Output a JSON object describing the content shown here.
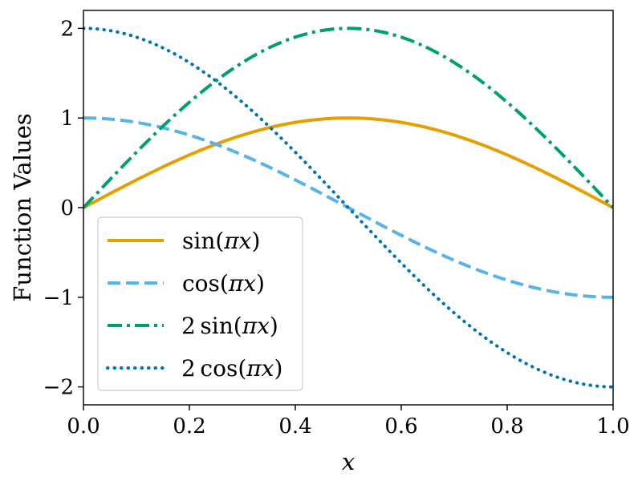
{
  "chart_data": {
    "type": "line",
    "title": "",
    "xlabel": "x",
    "ylabel": "Function Values",
    "xlim": [
      0.0,
      1.0
    ],
    "ylim": [
      -2.2,
      2.2
    ],
    "xticks": [
      0.0,
      0.2,
      0.4,
      0.6,
      0.8,
      1.0
    ],
    "xtick_labels": [
      "0.0",
      "0.2",
      "0.4",
      "0.6",
      "0.8",
      "1.0"
    ],
    "yticks": [
      -2,
      -1,
      0,
      1,
      2
    ],
    "ytick_labels": [
      "−2",
      "−1",
      "0",
      "1",
      "2"
    ],
    "grid": false,
    "legend_position": "lower-left",
    "x": [
      0.0,
      0.05,
      0.1,
      0.15,
      0.2,
      0.25,
      0.3,
      0.35,
      0.4,
      0.45,
      0.5,
      0.55,
      0.6,
      0.65,
      0.7,
      0.75,
      0.8,
      0.85,
      0.9,
      0.95,
      1.0
    ],
    "series": [
      {
        "name": "sin(πx)",
        "legend_prefix": "",
        "legend_func": "sin",
        "legend_arg": "πx",
        "color": "#E69F00",
        "style": "solid",
        "values": [
          0.0,
          0.1564,
          0.309,
          0.454,
          0.5878,
          0.7071,
          0.809,
          0.891,
          0.9511,
          0.9877,
          1.0,
          0.9877,
          0.9511,
          0.891,
          0.809,
          0.7071,
          0.5878,
          0.454,
          0.309,
          0.1564,
          0.0
        ]
      },
      {
        "name": "cos(πx)",
        "legend_prefix": "",
        "legend_func": "cos",
        "legend_arg": "πx",
        "color": "#56B4E9",
        "style": "dashed",
        "values": [
          1.0,
          0.9877,
          0.9511,
          0.891,
          0.809,
          0.7071,
          0.5878,
          0.454,
          0.309,
          0.1564,
          0.0,
          -0.1564,
          -0.309,
          -0.454,
          -0.5878,
          -0.7071,
          -0.809,
          -0.891,
          -0.9511,
          -0.9877,
          -1.0
        ]
      },
      {
        "name": "2 sin(πx)",
        "legend_prefix": "2",
        "legend_func": "sin",
        "legend_arg": "πx",
        "color": "#009E73",
        "style": "dashdot",
        "values": [
          0.0,
          0.3129,
          0.618,
          0.908,
          1.1756,
          1.4142,
          1.618,
          1.782,
          1.9021,
          1.9754,
          2.0,
          1.9754,
          1.9021,
          1.782,
          1.618,
          1.4142,
          1.1756,
          0.908,
          0.618,
          0.3129,
          0.0
        ]
      },
      {
        "name": "2 cos(πx)",
        "legend_prefix": "2",
        "legend_func": "cos",
        "legend_arg": "πx",
        "color": "#0072B2",
        "style": "dotted",
        "values": [
          2.0,
          1.9754,
          1.9021,
          1.782,
          1.618,
          1.4142,
          1.1756,
          0.908,
          0.618,
          0.3129,
          0.0,
          -0.3129,
          -0.618,
          -0.908,
          -1.1756,
          -1.4142,
          -1.618,
          -1.782,
          -1.9021,
          -1.9754,
          -2.0
        ]
      }
    ]
  }
}
